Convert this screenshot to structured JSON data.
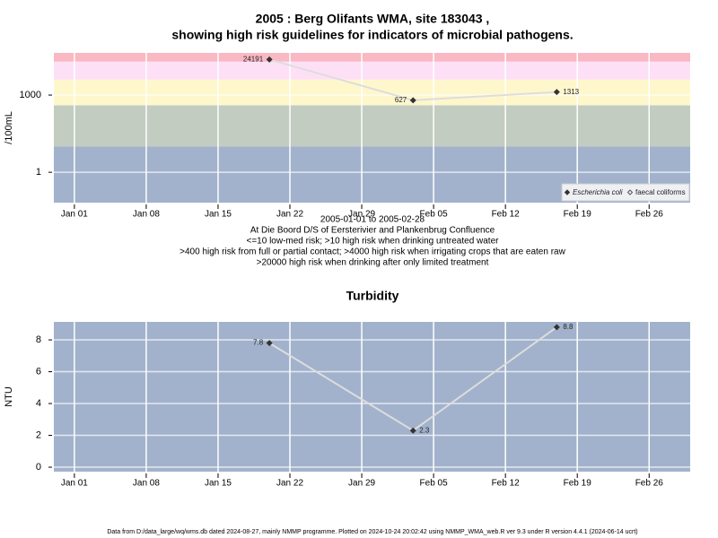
{
  "chart_data": [
    {
      "type": "line",
      "title": [
        "2005 : Berg Olifants WMA, site 183043 ,",
        "showing high risk guidelines for indicators of microbial pathogens."
      ],
      "notes": [
        "2005-01-01 to 2005-02-28",
        "At Die Boord D/S of Eersterivier and Plankenbrug Confluence",
        "<=10 low-med risk; >10 high risk when drinking untreated water",
        ">400 high risk from full or partial contact; >4000 high risk when irrigating crops that are eaten raw",
        ">20000 high risk when drinking after only limited treatment"
      ],
      "y_label": "/100mL",
      "log_y": true,
      "grid": true,
      "legend": "bottom-right",
      "x": [
        "Jan 20",
        "Feb 03",
        "Feb 17"
      ],
      "xlim": [
        "Dec 30",
        "Mar 02"
      ],
      "xticks": [
        "Jan 01",
        "Jan 08",
        "Jan 15",
        "Jan 22",
        "Jan 29",
        "Feb 05",
        "Feb 12",
        "Feb 19",
        "Feb 26"
      ],
      "ylim": [
        0.066,
        43600
      ],
      "yticks": [
        1,
        1000
      ],
      "bands": [
        {
          "from": 0.066,
          "to": 10,
          "color": "#a2b2cc"
        },
        {
          "from": 10,
          "to": 400,
          "color": "#c3ccc0"
        },
        {
          "from": 400,
          "to": 4000,
          "color": "#fef7cc"
        },
        {
          "from": 4000,
          "to": 20000,
          "color": "#fde0f6"
        },
        {
          "from": 20000,
          "to": 43600,
          "color": "#f9b8c3"
        }
      ],
      "series": [
        {
          "name": "Escherichia coli",
          "color": "#333333",
          "line_color": "#dddddd",
          "values": [
            24191,
            627,
            1313
          ]
        },
        {
          "name": "faecal coliforms",
          "color": "#555555",
          "values": [
            null,
            null,
            null
          ]
        }
      ]
    },
    {
      "type": "line",
      "title": [
        "Turbidity"
      ],
      "y_label": "NTU",
      "grid": true,
      "background": "#a2b2cc",
      "x": [
        "Jan 20",
        "Feb 03",
        "Feb 17"
      ],
      "xlim": [
        "Dec 30",
        "Mar 02"
      ],
      "xticks": [
        "Jan 01",
        "Jan 08",
        "Jan 15",
        "Jan 22",
        "Jan 29",
        "Feb 05",
        "Feb 12",
        "Feb 19",
        "Feb 26"
      ],
      "ylim": [
        -0.28,
        9.13
      ],
      "yticks": [
        0,
        2,
        4,
        6,
        8
      ],
      "series": [
        {
          "color": "#333333",
          "line_color": "#dddddd",
          "values": [
            7.8,
            2.3,
            8.8
          ]
        }
      ]
    }
  ],
  "footer": "Data from D:/data_large/wq/wms.db dated 2024-08-27, mainly NMMP programme. Plotted on 2024-10-24 20:02:42 using NMMP_WMA_web.R ver 9.3 under R version 4.4.1 (2024-06-14 ucrt)"
}
